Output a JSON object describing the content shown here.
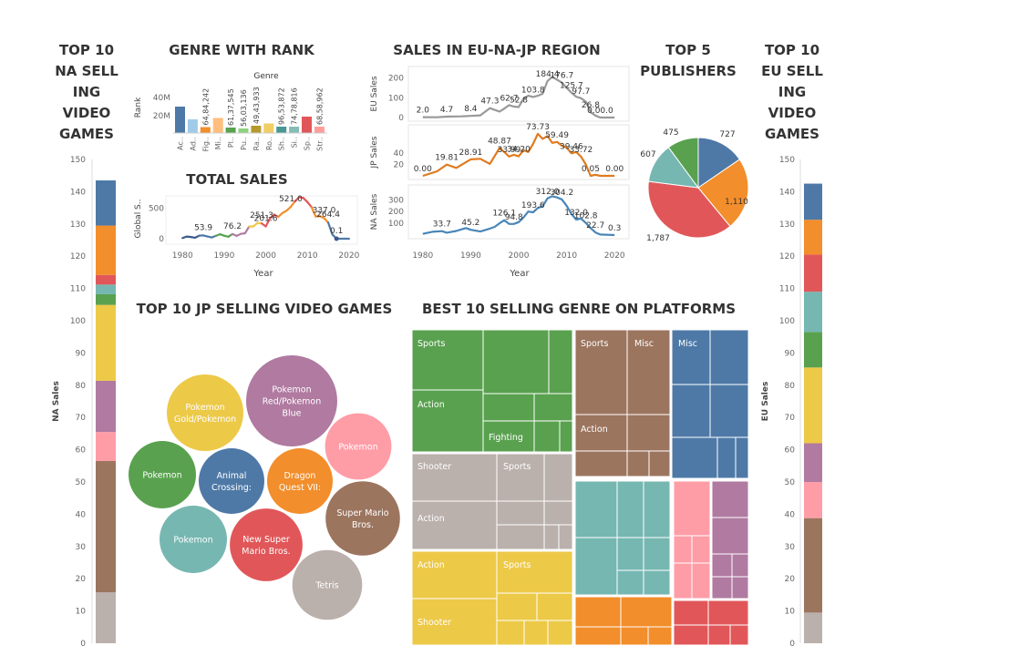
{
  "titles": {
    "na_top10": [
      "TOP 10",
      "NA SELL",
      "ING",
      "VIDEO",
      "GAMES"
    ],
    "genre_rank": "GENRE WITH RANK",
    "total_sales": "TOTAL SALES",
    "region_sales": "SALES IN EU-NA-JP REGION",
    "top5_publishers": [
      "TOP 5",
      "PUBLISHERS"
    ],
    "eu_top10": [
      "TOP 10",
      "EU SELL",
      "ING",
      "VIDEO",
      "GAMES"
    ],
    "jp_top10": "TOP 10 JP SELLING VIDEO GAMES",
    "best_genre_platforms": "BEST 10  SELLING GENRE ON PLATFORMS"
  },
  "colors": {
    "blue": "#4e79a7",
    "orange": "#f28e2b",
    "red": "#e15759",
    "teal": "#76b7b2",
    "green": "#59a14f",
    "yellow": "#edc948",
    "purple": "#b07aa1",
    "pink": "#ff9da7",
    "brown": "#9c755f",
    "gray": "#bab0ac",
    "lightblue": "#a0cbe8",
    "lightorange": "#ffbe7d"
  },
  "chart_data": [
    {
      "id": "na_top10",
      "type": "bar",
      "stacked": true,
      "ylabel": "NA Sales",
      "ylim": [
        0,
        150
      ],
      "ticks": [
        0,
        10,
        20,
        30,
        40,
        50,
        60,
        70,
        80,
        90,
        100,
        110,
        120,
        130,
        140,
        150
      ],
      "series": [
        {
          "color": "#bab0ac",
          "values": [
            15.8
          ]
        },
        {
          "color": "#9c755f",
          "values": [
            40.7
          ]
        },
        {
          "color": "#ff9da7",
          "values": [
            9.0
          ]
        },
        {
          "color": "#b07aa1",
          "values": [
            15.9
          ]
        },
        {
          "color": "#edc948",
          "values": [
            23.5
          ]
        },
        {
          "color": "#59a14f",
          "values": [
            3.3
          ]
        },
        {
          "color": "#76b7b2",
          "values": [
            3.0
          ]
        },
        {
          "color": "#e15759",
          "values": [
            3.0
          ]
        },
        {
          "color": "#f28e2b",
          "values": [
            15.3
          ]
        },
        {
          "color": "#4e79a7",
          "values": [
            14.0
          ]
        }
      ]
    },
    {
      "id": "genre_rank",
      "type": "bar",
      "legend_title": "Genre",
      "ylabel": "Rank",
      "yticks": [
        "20M",
        "40M"
      ],
      "ylim": [
        0,
        60000000
      ],
      "categories": [
        "Ac..",
        "Ad..",
        "Fig..",
        "Mi..",
        "Pl..",
        "Pu..",
        "Ra..",
        "Ro..",
        "Sh..",
        "Si..",
        "Sp..",
        "Str.."
      ],
      "bar_colors": [
        "#4e79a7",
        "#a0cbe8",
        "#f28e2b",
        "#ffbe7d",
        "#59a14f",
        "#8cd17d",
        "#b6992d",
        "#f1ce63",
        "#499894",
        "#86bcb6",
        "#e15759",
        "#ff9d9a"
      ],
      "values": [
        29000000,
        15000000,
        6500000,
        16500000,
        6000000,
        5000000,
        8000000,
        10500000,
        7000000,
        7000000,
        18000000,
        7000000
      ],
      "value_labels": [
        "",
        "",
        "64,84,242",
        "",
        "61,37,545",
        "56,03,136",
        "49,43,933",
        "",
        "96,53,872",
        "74,78,816",
        "",
        "68,58,962"
      ]
    },
    {
      "id": "total_sales",
      "type": "line",
      "ylabel": "Global S..",
      "xlabel": "Year",
      "ylim": [
        0,
        700
      ],
      "yticks": [
        0,
        500
      ],
      "xticks": [
        1980,
        1990,
        2000,
        2010,
        2020
      ],
      "x": [
        1980,
        1981,
        1982,
        1983,
        1984,
        1985,
        1986,
        1987,
        1988,
        1989,
        1990,
        1991,
        1992,
        1993,
        1994,
        1995,
        1996,
        1997,
        1998,
        1999,
        2000,
        2001,
        2002,
        2003,
        2004,
        2005,
        2006,
        2007,
        2008,
        2009,
        2010,
        2011,
        2012,
        2013,
        2014,
        2015,
        2016,
        2017,
        2020
      ],
      "values": [
        11,
        35,
        28,
        16,
        50,
        53.9,
        37,
        21,
        47,
        73,
        49,
        32,
        76.2,
        46,
        79,
        88,
        199,
        201,
        256,
        251.3,
        201.6,
        331,
        395,
        357,
        419,
        459,
        521.0,
        610,
        678,
        667,
        600,
        516,
        363,
        368,
        337.0,
        264.4,
        70,
        0.1,
        0.3
      ],
      "data_labels": [
        {
          "x": 1985,
          "y": 53.9,
          "text": "53.9"
        },
        {
          "x": 1992,
          "y": 76.2,
          "text": "76.2"
        },
        {
          "x": 1999,
          "y": 251.3,
          "text": "251.3"
        },
        {
          "x": 2000,
          "y": 201.6,
          "text": "201.6"
        },
        {
          "x": 2006,
          "y": 521.0,
          "text": "521.0"
        },
        {
          "x": 2014,
          "y": 337.0,
          "text": "337.0"
        },
        {
          "x": 2015,
          "y": 264.4,
          "text": "264.4"
        },
        {
          "x": 2017,
          "y": 0.1,
          "text": "0.1"
        }
      ]
    },
    {
      "id": "region_sales",
      "type": "line",
      "xlabel": "Year",
      "xticks": [
        1980,
        1990,
        2000,
        2010,
        2020
      ],
      "series": [
        {
          "name": "EU Sales",
          "color": "#999999",
          "ylim": [
            0,
            230
          ],
          "yticks": [
            0,
            100,
            200
          ],
          "x": [
            1980,
            1983,
            1985,
            1988,
            1990,
            1992,
            1994,
            1996,
            1997,
            1998,
            1999,
            2000,
            2001,
            2002,
            2003,
            2004,
            2005,
            2006,
            2007,
            2008,
            2009,
            2010,
            2011,
            2012,
            2013,
            2014,
            2015,
            2016,
            2017,
            2020
          ],
          "values": [
            2.0,
            1.5,
            4.7,
            6,
            8.4,
            11,
            47.3,
            30,
            45,
            62.7,
            55,
            52.8,
            95,
            110,
            103.8,
            110,
            120,
            184.4,
            205,
            191,
            176.7,
            150,
            125.7,
            105,
            97.7,
            80,
            26.8,
            10,
            0.0,
            0.0
          ],
          "labels": [
            {
              "x": 1980,
              "y": 2.0,
              "text": "2.0"
            },
            {
              "x": 1985,
              "y": 4.7,
              "text": "4.7"
            },
            {
              "x": 1990,
              "y": 8.4,
              "text": "8.4"
            },
            {
              "x": 1994,
              "y": 47.3,
              "text": "47.3"
            },
            {
              "x": 1998,
              "y": 62.7,
              "text": "62.7"
            },
            {
              "x": 2000,
              "y": 52.8,
              "text": "52.8"
            },
            {
              "x": 2003,
              "y": 103.8,
              "text": "103.8"
            },
            {
              "x": 2006,
              "y": 184.4,
              "text": "184.4"
            },
            {
              "x": 2009,
              "y": 176.7,
              "text": "176.7"
            },
            {
              "x": 2011,
              "y": 125.7,
              "text": "125.7"
            },
            {
              "x": 2013,
              "y": 97.7,
              "text": "97.7"
            },
            {
              "x": 2015,
              "y": 26.8,
              "text": "26.8"
            },
            {
              "x": 2017,
              "y": 0.0,
              "text": "0.00.0"
            }
          ]
        },
        {
          "name": "JP Sales",
          "color": "#e07b1f",
          "ylim": [
            0,
            80
          ],
          "yticks": [
            20,
            40
          ],
          "x": [
            1980,
            1983,
            1985,
            1987,
            1990,
            1992,
            1994,
            1996,
            1997,
            1998,
            1999,
            2000,
            2001,
            2002,
            2003,
            2004,
            2005,
            2006,
            2007,
            2008,
            2009,
            2010,
            2011,
            2012,
            2013,
            2014,
            2015,
            2016,
            2017,
            2020
          ],
          "values": [
            0.0,
            8,
            19.81,
            14,
            28.91,
            30,
            21,
            48.87,
            42,
            33.99,
            37,
            34.2,
            45,
            42,
            56,
            73.73,
            65,
            70,
            58,
            59.49,
            53,
            50,
            39.46,
            42,
            33.72,
            20,
            0.05,
            2,
            0.0,
            0.0
          ],
          "labels": [
            {
              "x": 1980,
              "y": 0.0,
              "text": "0.00"
            },
            {
              "x": 1985,
              "y": 19.81,
              "text": "19.81"
            },
            {
              "x": 1990,
              "y": 28.91,
              "text": "28.91"
            },
            {
              "x": 1996,
              "y": 48.87,
              "text": "48.87"
            },
            {
              "x": 1998,
              "y": 33.99,
              "text": "33.99"
            },
            {
              "x": 2000,
              "y": 34.2,
              "text": "34.20"
            },
            {
              "x": 2004,
              "y": 73.73,
              "text": "73.73"
            },
            {
              "x": 2008,
              "y": 59.49,
              "text": "59.49"
            },
            {
              "x": 2011,
              "y": 39.46,
              "text": "39.46"
            },
            {
              "x": 2013,
              "y": 33.72,
              "text": "33.72"
            },
            {
              "x": 2015,
              "y": 0.05,
              "text": "0.05"
            },
            {
              "x": 2020,
              "y": 0.0,
              "text": "0.00"
            }
          ]
        },
        {
          "name": "NA Sales",
          "color": "#4a86b8",
          "ylim": [
            0,
            380
          ],
          "yticks": [
            100,
            200,
            300
          ],
          "x": [
            1980,
            1982,
            1984,
            1985,
            1987,
            1989,
            1990,
            1992,
            1994,
            1995,
            1996,
            1997,
            1998,
            1999,
            2000,
            2001,
            2002,
            2003,
            2004,
            2005,
            2006,
            2007,
            2008,
            2009,
            2010,
            2011,
            2012,
            2013,
            2014,
            2015,
            2016,
            2017,
            2020
          ],
          "values": [
            10,
            28,
            33.7,
            20,
            35,
            60,
            45.2,
            30,
            55,
            70,
            100,
            126.1,
            95,
            94.8,
            110,
            150,
            200,
            193.6,
            230,
            245,
            312.0,
            330,
            320,
            304.2,
            250,
            180,
            132.0,
            140,
            102.8,
            60,
            22.7,
            5,
            0.3
          ],
          "labels": [
            {
              "x": 1984,
              "y": 33.7,
              "text": "33.7"
            },
            {
              "x": 1990,
              "y": 45.2,
              "text": "45.2"
            },
            {
              "x": 1997,
              "y": 126.1,
              "text": "126.1"
            },
            {
              "x": 1999,
              "y": 94.8,
              "text": "94.8"
            },
            {
              "x": 2003,
              "y": 193.6,
              "text": "193.6"
            },
            {
              "x": 2006,
              "y": 312.0,
              "text": "312.0"
            },
            {
              "x": 2009,
              "y": 304.2,
              "text": "304.2"
            },
            {
              "x": 2012,
              "y": 132.0,
              "text": "132.0"
            },
            {
              "x": 2014,
              "y": 102.8,
              "text": "102.8"
            },
            {
              "x": 2016,
              "y": 22.7,
              "text": "22.7"
            },
            {
              "x": 2020,
              "y": 0.3,
              "text": "0.3"
            }
          ]
        }
      ]
    },
    {
      "id": "top5_publishers",
      "type": "pie",
      "values": [
        727,
        1110,
        1787,
        607,
        475
      ],
      "labels": [
        "727",
        "1,110",
        "1,787",
        "607",
        "475"
      ],
      "colors": [
        "#4e79a7",
        "#f28e2b",
        "#e15759",
        "#76b7b2",
        "#59a14f"
      ]
    },
    {
      "id": "eu_top10",
      "type": "bar",
      "stacked": true,
      "ylabel": "EU Sales",
      "ylim": [
        0,
        150
      ],
      "ticks": [
        0,
        10,
        20,
        30,
        40,
        50,
        60,
        70,
        80,
        90,
        100,
        110,
        120,
        130,
        140,
        150
      ],
      "series": [
        {
          "color": "#bab0ac",
          "values": [
            9.5
          ]
        },
        {
          "color": "#9c755f",
          "values": [
            29.3
          ]
        },
        {
          "color": "#ff9da7",
          "values": [
            11.2
          ]
        },
        {
          "color": "#b07aa1",
          "values": [
            12.0
          ]
        },
        {
          "color": "#edc948",
          "values": [
            23.5
          ]
        },
        {
          "color": "#59a14f",
          "values": [
            11.0
          ]
        },
        {
          "color": "#76b7b2",
          "values": [
            12.5
          ]
        },
        {
          "color": "#e15759",
          "values": [
            11.5
          ]
        },
        {
          "color": "#f28e2b",
          "values": [
            10.8
          ]
        },
        {
          "color": "#4e79a7",
          "values": [
            11.2
          ]
        }
      ]
    },
    {
      "id": "jp_top10",
      "type": "scatter",
      "note": "packed bubbles",
      "bubbles": [
        {
          "label": [
            "Pokemon",
            "Red/Pokemon",
            "Blue"
          ],
          "value": 10.2,
          "color": "#b07aa1"
        },
        {
          "label": [
            "Pokemon",
            "Gold/Pokemon"
          ],
          "value": 7.2,
          "color": "#edc948"
        },
        {
          "label": [
            "Pokemon"
          ],
          "value": 5.4,
          "color": "#ff9da7"
        },
        {
          "label": [
            "Pokemon"
          ],
          "value": 5.6,
          "color": "#59a14f"
        },
        {
          "label": [
            "Animal",
            "Crossing:"
          ],
          "value": 5.3,
          "color": "#4e79a7"
        },
        {
          "label": [
            "Dragon",
            "Quest VII:"
          ],
          "value": 5.3,
          "color": "#f28e2b"
        },
        {
          "label": [
            "Super Mario",
            "Bros."
          ],
          "value": 6.8,
          "color": "#9c755f"
        },
        {
          "label": [
            "Pokemon"
          ],
          "value": 5.6,
          "color": "#76b7b2"
        },
        {
          "label": [
            "New Super",
            "Mario Bros."
          ],
          "value": 6.5,
          "color": "#e15759"
        },
        {
          "label": [
            "Tetris"
          ],
          "value": 6.0,
          "color": "#bab0ac"
        }
      ]
    },
    {
      "id": "best_genre_platforms",
      "type": "heatmap",
      "note": "treemap of genres per platform",
      "labels": {
        "green_top": "Sports",
        "green_mid": "Action",
        "green_sub": "Fighting",
        "gray_a": "Shooter",
        "gray_b": "Sports",
        "gray_c": "Action",
        "yellow_a": "Action",
        "yellow_b": "Sports",
        "yellow_c": "Shooter",
        "brown_a": "Sports",
        "brown_b": "Misc",
        "brown_c": "Action",
        "blue_a": "Misc"
      }
    }
  ]
}
